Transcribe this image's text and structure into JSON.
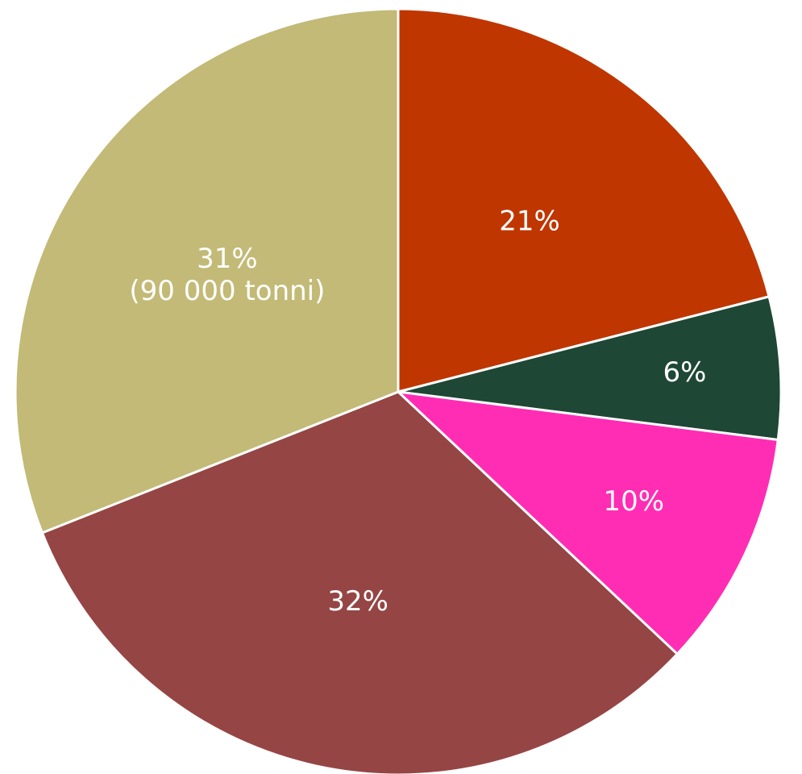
{
  "chart_data": {
    "type": "pie",
    "slices": [
      {
        "value": 21,
        "label": "21%",
        "color": "#BF3600"
      },
      {
        "value": 6,
        "label": "6%",
        "color": "#1E4735"
      },
      {
        "value": 10,
        "label": "10%",
        "color": "#FF2DB4"
      },
      {
        "value": 32,
        "label": "32%",
        "color": "#954544"
      },
      {
        "value": 31,
        "label": "31%",
        "sublabel": "(90 000 tonni)",
        "color": "#C2BA76"
      }
    ],
    "start_angle": "12 o'clock",
    "direction": "clockwise",
    "legend": "none"
  }
}
